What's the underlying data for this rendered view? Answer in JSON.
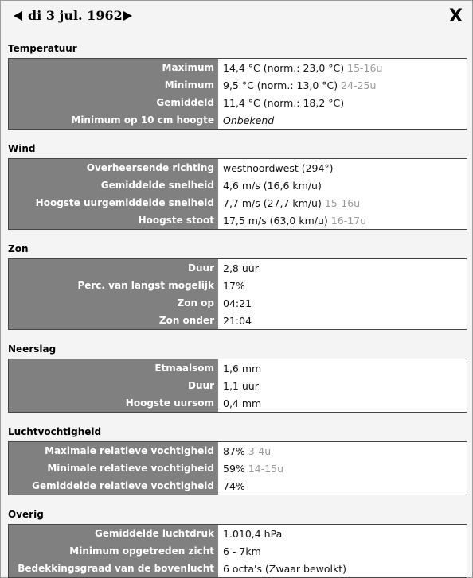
{
  "header": {
    "date": "di 3 jul. 1962",
    "close": "X"
  },
  "sections": [
    {
      "title": "Temperatuur",
      "rows": [
        {
          "label": "Maximum",
          "value": "14,4 °C (norm.: 23,0 °C)",
          "extra": "15-16u"
        },
        {
          "label": "Minimum",
          "value": "9,5 °C (norm.: 13,0 °C)",
          "extra": "24-25u"
        },
        {
          "label": "Gemiddeld",
          "value": "11,4 °C (norm.: 18,2 °C)"
        },
        {
          "label": "Minimum op 10 cm hoogte",
          "value": "Onbekend",
          "italic": true
        }
      ]
    },
    {
      "title": "Wind",
      "rows": [
        {
          "label": "Overheersende richting",
          "value": "westnoordwest (294°)"
        },
        {
          "label": "Gemiddelde snelheid",
          "value": "4,6 m/s (16,6 km/u)"
        },
        {
          "label": "Hoogste uurgemiddelde snelheid",
          "value": "7,7 m/s (27,7 km/u)",
          "extra": "15-16u"
        },
        {
          "label": "Hoogste stoot",
          "value": "17,5 m/s (63,0 km/u)",
          "extra": "16-17u"
        }
      ]
    },
    {
      "title": "Zon",
      "rows": [
        {
          "label": "Duur",
          "value": "2,8 uur"
        },
        {
          "label": "Perc. van langst mogelijk",
          "value": "17%"
        },
        {
          "label": "Zon op",
          "value": "04:21"
        },
        {
          "label": "Zon onder",
          "value": "21:04"
        }
      ]
    },
    {
      "title": "Neerslag",
      "rows": [
        {
          "label": "Etmaalsom",
          "value": "1,6 mm"
        },
        {
          "label": "Duur",
          "value": "1,1 uur"
        },
        {
          "label": "Hoogste uursom",
          "value": "0,4 mm"
        }
      ]
    },
    {
      "title": "Luchtvochtigheid",
      "rows": [
        {
          "label": "Maximale relatieve vochtigheid",
          "value": "87%",
          "extra": "3-4u"
        },
        {
          "label": "Minimale relatieve vochtigheid",
          "value": "59%",
          "extra": "14-15u"
        },
        {
          "label": "Gemiddelde relatieve vochtigheid",
          "value": "74%"
        }
      ]
    },
    {
      "title": "Overig",
      "rows": [
        {
          "label": "Gemiddelde luchtdruk",
          "value": "1.010,4 hPa"
        },
        {
          "label": "Minimum opgetreden zicht",
          "value": "6 - 7km"
        },
        {
          "label": "Bedekkingsgraad van de bovenlucht",
          "value": "6 octa's (Zwaar bewolkt)"
        }
      ]
    }
  ]
}
